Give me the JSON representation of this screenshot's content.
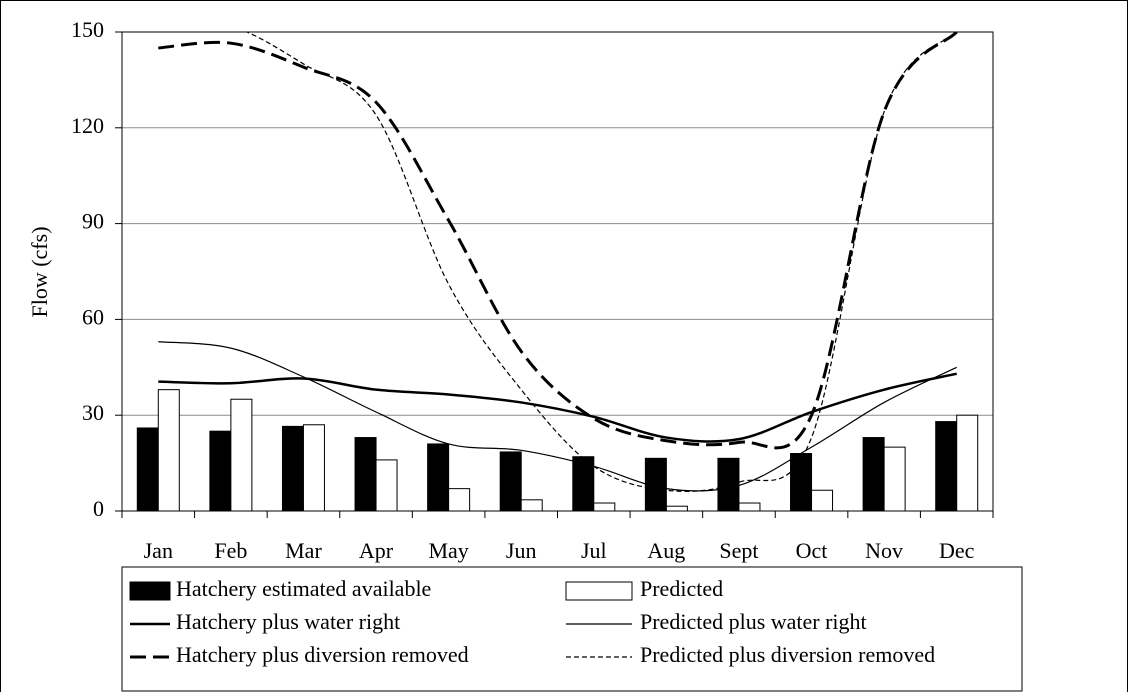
{
  "chart_data": {
    "type": "bar-line",
    "y_label": "Flow (cfs)",
    "categories": [
      "Jan",
      "Feb",
      "Mar",
      "Apr",
      "May",
      "Jun",
      "Jul",
      "Aug",
      "Sept",
      "Oct",
      "Nov",
      "Dec"
    ],
    "ylim": [
      0,
      150
    ],
    "yticks": [
      0,
      30,
      60,
      90,
      120,
      150
    ],
    "grid": true,
    "series": [
      {
        "name": "Hatchery estimated available",
        "kind": "bar",
        "color": "#000000",
        "values": [
          26,
          25,
          26.5,
          23,
          21,
          18.5,
          17,
          16.5,
          16.5,
          18,
          23,
          28
        ]
      },
      {
        "name": "Predicted",
        "kind": "bar",
        "color": "#ffffff",
        "values": [
          38,
          35,
          27,
          16,
          7,
          3.5,
          2.5,
          1.5,
          2.5,
          6.5,
          20,
          30
        ]
      },
      {
        "name": "Hatchery plus water right",
        "kind": "line",
        "color": "#000000",
        "dash": "solid",
        "width": 2.5,
        "values": [
          40.5,
          40,
          41.5,
          38,
          36.5,
          34,
          29.5,
          23,
          22.5,
          31,
          38,
          43
        ]
      },
      {
        "name": "Predicted plus water right",
        "kind": "line",
        "color": "#000000",
        "dash": "solid",
        "width": 1.2,
        "values": [
          53,
          51,
          42,
          31,
          21,
          19,
          14,
          7,
          8,
          20,
          34,
          45
        ]
      },
      {
        "name": "Hatchery plus diversion removed",
        "kind": "line",
        "color": "#000000",
        "dash": "long",
        "width": 3,
        "values": [
          145,
          146.5,
          139,
          128,
          91,
          50,
          29,
          22,
          21.5,
          30,
          125,
          150
        ]
      },
      {
        "name": "Predicted plus diversion removed",
        "kind": "line",
        "color": "#000000",
        "dash": "short",
        "width": 1.2,
        "values": [
          155,
          152,
          140,
          124,
          71,
          38,
          14,
          6.5,
          9,
          23,
          125,
          150
        ]
      }
    ]
  }
}
